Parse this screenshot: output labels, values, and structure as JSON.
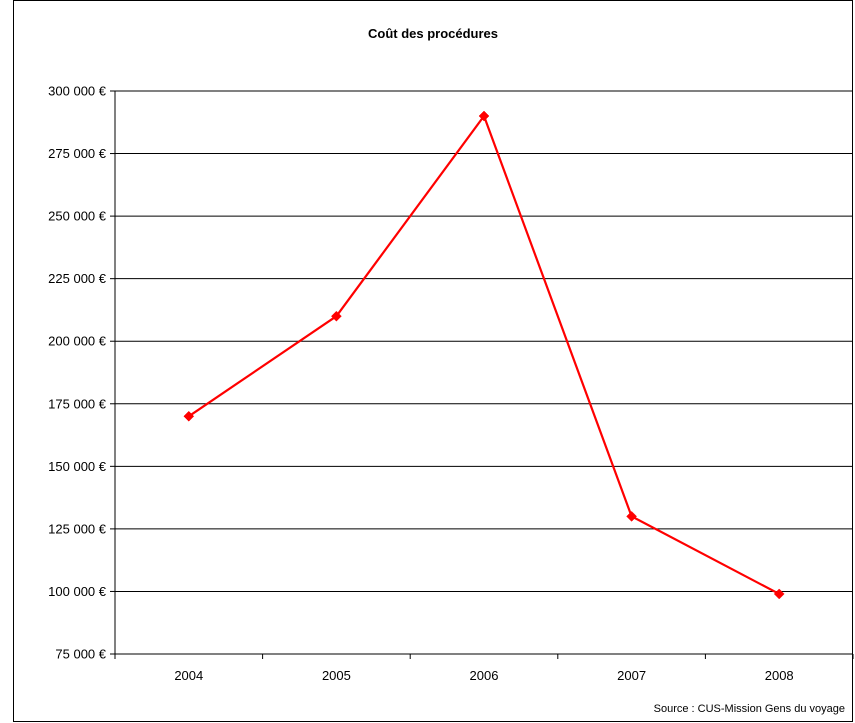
{
  "colors": {
    "series": "#ff0000",
    "grid": "#000000",
    "axis": "#000000",
    "background": "#ffffff"
  },
  "chart_data": {
    "type": "line",
    "title": "Coût des procédures",
    "source": "Source : CUS-Mission Gens du voyage",
    "xlabel": "",
    "ylabel": "",
    "categories": [
      "2004",
      "2005",
      "2006",
      "2007",
      "2008"
    ],
    "series": [
      {
        "values": [
          170000,
          210000,
          290000,
          130000,
          99000
        ],
        "marker": "diamond"
      }
    ],
    "ylim": [
      75000,
      300000
    ],
    "ytick_step": 25000,
    "yticks": [
      "75 000 €",
      "100 000 €",
      "125 000 €",
      "150 000 €",
      "175 000 €",
      "200 000 €",
      "225 000 €",
      "250 000 €",
      "275 000 €",
      "300 000 €"
    ],
    "grid": "horizontal major gridlines",
    "legend": "none"
  }
}
